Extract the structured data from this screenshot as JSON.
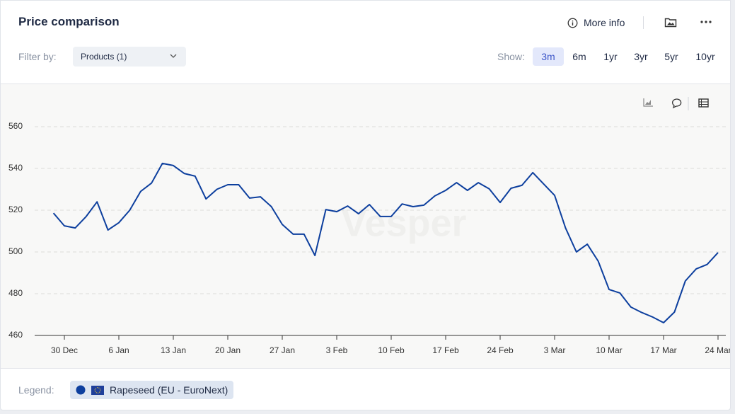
{
  "header": {
    "title": "Price comparison",
    "more_info": "More info"
  },
  "filters": {
    "filter_label": "Filter by:",
    "products": "Products (1)",
    "show_label": "Show:",
    "periods": [
      "3m",
      "6m",
      "1yr",
      "3yr",
      "5yr",
      "10yr"
    ],
    "active_period_index": 0
  },
  "watermark": "Vesper",
  "legend": {
    "label": "Legend:"
  },
  "chart_data": {
    "type": "line",
    "categories": [
      null,
      "30 Dec",
      null,
      null,
      null,
      null,
      "6 Jan",
      null,
      null,
      null,
      null,
      "13 Jan",
      null,
      null,
      null,
      null,
      "20 Jan",
      null,
      null,
      null,
      null,
      "27 Jan",
      null,
      null,
      null,
      null,
      "3 Feb",
      null,
      null,
      null,
      null,
      "10 Feb",
      null,
      null,
      null,
      null,
      "17 Feb",
      null,
      null,
      null,
      null,
      "24 Feb",
      null,
      null,
      null,
      null,
      "3 Mar",
      null,
      null,
      null,
      null,
      "10 Mar",
      null,
      null,
      null,
      null,
      "17 Mar",
      null,
      null,
      null,
      null,
      "24 Mar"
    ],
    "series": [
      {
        "name": "Rapeseed (EU - EuroNext)",
        "color": "#0d3f9e",
        "values": [
          518.6,
          512.5,
          511.5,
          517,
          524,
          510.5,
          514,
          520,
          529,
          533,
          542.4,
          541.4,
          537.6,
          536.3,
          525.4,
          530,
          532.2,
          532.2,
          525.8,
          526.4,
          521.7,
          513.2,
          508.5,
          508.5,
          498.3,
          520.3,
          519.3,
          522,
          518.3,
          522.7,
          517,
          517,
          523,
          521.7,
          522.4,
          526.8,
          529.5,
          533.2,
          529.5,
          533.2,
          530.2,
          523.7,
          530.5,
          531.9,
          538,
          532.5,
          527.1,
          511.5,
          500,
          503.7,
          495.6,
          482,
          480.3,
          473.6,
          471,
          468.8,
          466.1,
          471.2,
          486.1,
          491.9,
          494,
          499.7
        ]
      }
    ],
    "ylim": [
      460,
      560
    ],
    "yticks": [
      460,
      480,
      500,
      520,
      540,
      560
    ],
    "grid": true
  }
}
